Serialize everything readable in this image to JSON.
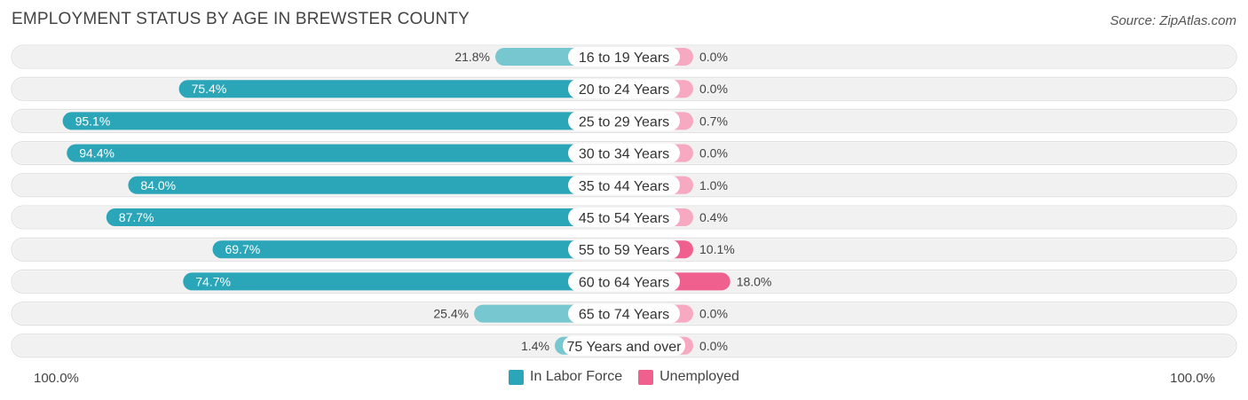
{
  "title": "EMPLOYMENT STATUS BY AGE IN BREWSTER COUNTY",
  "source": "Source: ZipAtlas.com",
  "colors": {
    "labor_force": "#2ba5b8",
    "labor_force_light": "#76c7cf",
    "unemployed": "#f0608e",
    "unemployed_light": "#f7a9c1",
    "row_background": "#f1f1f1"
  },
  "legend": {
    "labor_force": "In Labor Force",
    "unemployed": "Unemployed"
  },
  "axis": {
    "left_label": "100.0%",
    "right_label": "100.0%"
  },
  "chart_data": {
    "type": "bar",
    "title": "EMPLOYMENT STATUS BY AGE IN BREWSTER COUNTY",
    "categories": [
      "16 to 19 Years",
      "20 to 24 Years",
      "25 to 29 Years",
      "30 to 34 Years",
      "35 to 44 Years",
      "45 to 54 Years",
      "55 to 59 Years",
      "60 to 64 Years",
      "65 to 74 Years",
      "75 Years and over"
    ],
    "series": [
      {
        "name": "In Labor Force",
        "values": [
          21.8,
          75.4,
          95.1,
          94.4,
          84.0,
          87.7,
          69.7,
          74.7,
          25.4,
          1.4
        ],
        "labels": [
          "21.8%",
          "75.4%",
          "95.1%",
          "94.4%",
          "84.0%",
          "87.7%",
          "69.7%",
          "74.7%",
          "25.4%",
          "1.4%"
        ]
      },
      {
        "name": "Unemployed",
        "values": [
          0.0,
          0.0,
          0.7,
          0.0,
          1.0,
          0.4,
          10.1,
          18.0,
          0.0,
          0.0
        ],
        "labels": [
          "0.0%",
          "0.0%",
          "0.7%",
          "0.0%",
          "1.0%",
          "0.4%",
          "10.1%",
          "18.0%",
          "0.0%",
          "0.0%"
        ]
      }
    ],
    "xlim": [
      -100,
      100
    ],
    "legend_position": "bottom-center"
  }
}
